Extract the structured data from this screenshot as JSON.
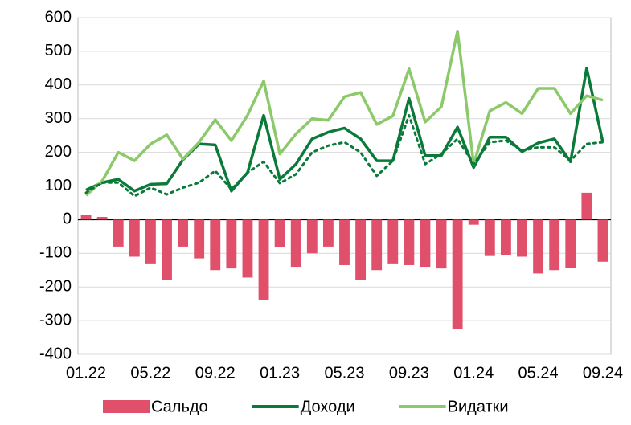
{
  "chart_data": {
    "type": "bar_line",
    "categories": [
      "01.22",
      null,
      null,
      null,
      "05.22",
      null,
      null,
      null,
      "09.22",
      null,
      null,
      null,
      "01.23",
      null,
      null,
      null,
      "05.23",
      null,
      null,
      null,
      "09.23",
      null,
      null,
      null,
      "01.24",
      null,
      null,
      null,
      "05.24",
      null,
      null,
      null,
      "09.24"
    ],
    "series": [
      {
        "name": "Сальдо",
        "type": "bar",
        "color": "#e0506a",
        "values": [
          15,
          8,
          -80,
          -110,
          -130,
          -180,
          -80,
          -115,
          -150,
          -145,
          -172,
          -240,
          -82,
          -140,
          -100,
          -80,
          -135,
          -180,
          -150,
          -130,
          -135,
          -140,
          -145,
          -325,
          -15,
          -108,
          -105,
          -110,
          -160,
          -150,
          -143,
          80,
          -125
        ]
      },
      {
        "name": "Доходи",
        "type": "line",
        "color": "#0a7a3a",
        "values": [
          88,
          110,
          120,
          85,
          105,
          107,
          178,
          225,
          222,
          85,
          140,
          310,
          120,
          165,
          240,
          260,
          272,
          240,
          175,
          175,
          360,
          190,
          190,
          275,
          155,
          245,
          245,
          202,
          228,
          240,
          172,
          450,
          230
        ]
      },
      {
        "name": "Видатки",
        "type": "line",
        "color": "#8cc96a",
        "values": [
          72,
          115,
          200,
          175,
          225,
          252,
          180,
          230,
          297,
          235,
          310,
          412,
          195,
          255,
          300,
          295,
          365,
          378,
          283,
          308,
          448,
          290,
          335,
          560,
          165,
          323,
          348,
          315,
          390,
          390,
          315,
          368,
          355
        ]
      },
      {
        "type": "line",
        "dash": true,
        "color": "#0a7a3a",
        "values": [
          80,
          110,
          110,
          70,
          95,
          75,
          95,
          110,
          145,
          90,
          140,
          172,
          108,
          135,
          200,
          220,
          230,
          200,
          130,
          175,
          310,
          165,
          195,
          240,
          165,
          230,
          235,
          205,
          215,
          215,
          175,
          225,
          230
        ]
      }
    ],
    "ylim": [
      -400,
      600
    ],
    "yticks": [
      -400,
      -300,
      -200,
      -100,
      0,
      100,
      200,
      300,
      400,
      500,
      600
    ],
    "grid": true
  }
}
